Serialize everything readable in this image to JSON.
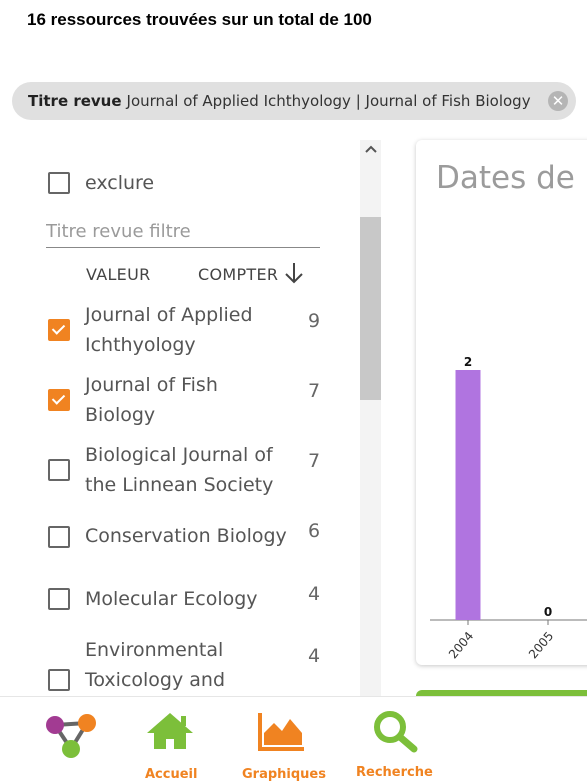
{
  "header": {
    "result_count": "16 ressources trouvées sur un total de 100"
  },
  "active_filter": {
    "label": "Titre revue",
    "value": "Journal of Applied Ichthyology | Journal of Fish Biology"
  },
  "facet": {
    "exclude_label": "exclure",
    "filter_placeholder": "Titre revue filtre",
    "col_value": "VALEUR",
    "col_count": "COMPTER",
    "items": [
      {
        "lines": [
          "Journal of Applied",
          "Ichthyology"
        ],
        "count": "9",
        "checked": true
      },
      {
        "lines": [
          "Journal of Fish",
          "Biology"
        ],
        "count": "7",
        "checked": true
      },
      {
        "lines": [
          "Biological Journal of",
          "the Linnean Society"
        ],
        "count": "7",
        "checked": false
      },
      {
        "lines": [
          "Conservation Biology"
        ],
        "count": "6",
        "checked": false
      },
      {
        "lines": [
          "Molecular Ecology"
        ],
        "count": "4",
        "checked": false
      },
      {
        "lines": [
          "Environmental",
          "Toxicology and"
        ],
        "count": "4",
        "checked": false
      }
    ]
  },
  "chart_card": {
    "title": "Dates de p"
  },
  "chart_data": {
    "type": "bar",
    "categories": [
      "2004",
      "2005"
    ],
    "values": [
      2,
      0
    ],
    "ylim": [
      0,
      2
    ],
    "bar_color": "#b074e0",
    "data_labels": true,
    "grid": false
  },
  "bottom_nav": {
    "items": [
      {
        "icon": "network-logo-icon",
        "label": ""
      },
      {
        "icon": "home-icon",
        "label": "Accueil"
      },
      {
        "icon": "chart-area-icon",
        "label": "Graphiques"
      },
      {
        "icon": "search-icon",
        "label": "Recherche"
      }
    ]
  },
  "colors": {
    "accent": "#f08321",
    "home_green": "#7cbf3a",
    "chip_bg": "#e0e0e0"
  }
}
